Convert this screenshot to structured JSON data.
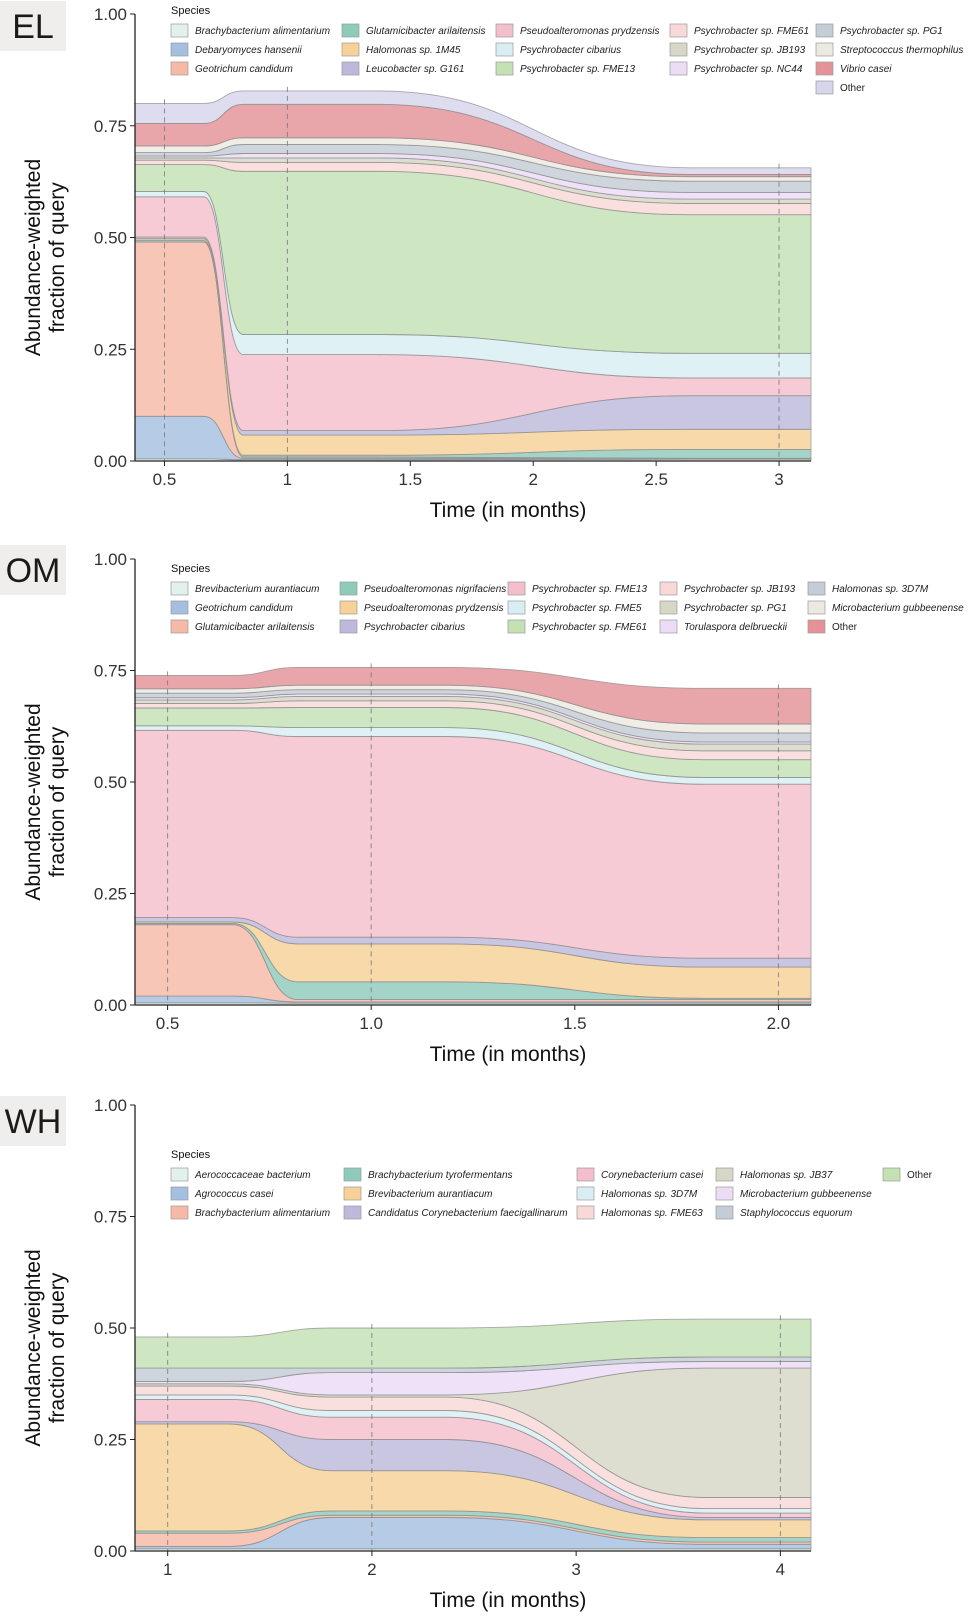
{
  "chart_data": [
    {
      "type": "area",
      "panel_label": "EL",
      "xlabel": "Time (in months)",
      "ylabel": "Abundance-weighted fraction of query",
      "xlim": [
        0.38,
        3.13
      ],
      "ylim": [
        0,
        1
      ],
      "x_ticks": [
        "0.5",
        "1",
        "1.5",
        "2",
        "2.5",
        "3"
      ],
      "x_tick_values": [
        0.5,
        1,
        1.5,
        2,
        2.5,
        3
      ],
      "y_ticks": [
        "0.00",
        "0.25",
        "0.50",
        "0.75",
        "1.00"
      ],
      "y_tick_values": [
        0,
        0.25,
        0.5,
        0.75,
        1
      ],
      "sample_times": [
        0.5,
        1,
        3
      ],
      "legend_title": "Species",
      "legend_columns": 5,
      "series": [
        {
          "name": "Brachybacterium alimentarium",
          "color": "#e3f1ec",
          "values": [
            0.005,
            0.003,
            0.004
          ]
        },
        {
          "name": "Debaryomyces hansenii",
          "color": "#a5bfe1",
          "values": [
            0.095,
            0.003,
            0.001
          ]
        },
        {
          "name": "Geotrichum candidum",
          "color": "#f6b9a6",
          "values": [
            0.39,
            0.003,
            0.001
          ]
        },
        {
          "name": "Glutamicibacter arilaitensis",
          "color": "#8fcbbb",
          "values": [
            0.003,
            0.004,
            0.02
          ]
        },
        {
          "name": "Halomonas sp. 1M45",
          "color": "#f7d197",
          "values": [
            0.004,
            0.045,
            0.045
          ]
        },
        {
          "name": "Leucobacter sp. G161",
          "color": "#bdb9dc",
          "values": [
            0.004,
            0.01,
            0.075
          ]
        },
        {
          "name": "Pseudoalteromonas prydzensis",
          "color": "#f4bfcc",
          "values": [
            0.09,
            0.17,
            0.04
          ]
        },
        {
          "name": "Psychrobacter cibarius",
          "color": "#d9eef3",
          "values": [
            0.012,
            0.045,
            0.055
          ]
        },
        {
          "name": "Psychrobacter sp. FME13",
          "color": "#c3e1b3",
          "values": [
            0.06,
            0.365,
            0.31
          ]
        },
        {
          "name": "Psychrobacter sp. FME61",
          "color": "#f9d8d8",
          "values": [
            0.01,
            0.02,
            0.025
          ]
        },
        {
          "name": "Psychrobacter sp. JB193",
          "color": "#d6d7c6",
          "values": [
            0.005,
            0.01,
            0.01
          ]
        },
        {
          "name": "Psychrobacter sp. NC44",
          "color": "#ecdcf6",
          "values": [
            0.004,
            0.01,
            0.015
          ]
        },
        {
          "name": "Psychrobacter sp. PG1",
          "color": "#c4ccd6",
          "values": [
            0.008,
            0.02,
            0.025
          ]
        },
        {
          "name": "Streptococcus thermophilus",
          "color": "#ebe9e1",
          "values": [
            0.015,
            0.015,
            0.01
          ]
        },
        {
          "name": "Vibrio casei",
          "color": "#e39397",
          "values": [
            0.05,
            0.075,
            0.005
          ]
        },
        {
          "name": "Other",
          "color": "#d5d6ec",
          "values": [
            0.045,
            0.03,
            0.015
          ]
        }
      ]
    },
    {
      "type": "area",
      "panel_label": "OM",
      "xlabel": "Time (in months)",
      "ylabel": "Abundance-weighted fraction of query",
      "xlim": [
        0.42,
        2.08
      ],
      "ylim": [
        0,
        1
      ],
      "x_ticks": [
        "0.5",
        "1.0",
        "1.5",
        "2.0"
      ],
      "x_tick_values": [
        0.5,
        1,
        1.5,
        2
      ],
      "y_ticks": [
        "0.00",
        "0.25",
        "0.50",
        "0.75",
        "1.00"
      ],
      "y_tick_values": [
        0,
        0.25,
        0.5,
        0.75,
        1
      ],
      "sample_times": [
        0.5,
        1,
        2
      ],
      "legend_title": "Species",
      "legend_columns": 5,
      "series": [
        {
          "name": "Brevibacterium aurantiacum",
          "color": "#e3f1ec",
          "values": [
            0.005,
            0.004,
            0.004
          ]
        },
        {
          "name": "Geotrichum candidum",
          "color": "#a5bfe1",
          "values": [
            0.015,
            0.003,
            0.003
          ]
        },
        {
          "name": "Glutamicibacter arilaitensis",
          "color": "#f6b9a6",
          "values": [
            0.16,
            0.005,
            0.005
          ]
        },
        {
          "name": "Pseudoalteromonas nigrifaciens",
          "color": "#8fcbbb",
          "values": [
            0.003,
            0.04,
            0.003
          ]
        },
        {
          "name": "Pseudoalteromonas prydzensis",
          "color": "#f7d197",
          "values": [
            0.003,
            0.085,
            0.07
          ]
        },
        {
          "name": "Psychrobacter cibarius",
          "color": "#bdb9dc",
          "values": [
            0.01,
            0.015,
            0.02
          ]
        },
        {
          "name": "Psychrobacter sp. FME13",
          "color": "#f4bfcc",
          "values": [
            0.42,
            0.45,
            0.39
          ]
        },
        {
          "name": "Psychrobacter sp. FME5",
          "color": "#d9eef3",
          "values": [
            0.01,
            0.02,
            0.015
          ]
        },
        {
          "name": "Psychrobacter sp. FME61",
          "color": "#c3e1b3",
          "values": [
            0.04,
            0.045,
            0.04
          ]
        },
        {
          "name": "Psychrobacter sp. JB193",
          "color": "#f9d8d8",
          "values": [
            0.01,
            0.015,
            0.02
          ]
        },
        {
          "name": "Psychrobacter sp. PG1",
          "color": "#d6d7c6",
          "values": [
            0.008,
            0.01,
            0.015
          ]
        },
        {
          "name": "Torulaspora delbrueckii",
          "color": "#ecdcf6",
          "values": [
            0.005,
            0.005,
            0.005
          ]
        },
        {
          "name": "Halomonas sp. 3D7M",
          "color": "#c4ccd6",
          "values": [
            0.01,
            0.01,
            0.02
          ]
        },
        {
          "name": "Microbacterium gubbeenense",
          "color": "#ebe9e1",
          "values": [
            0.01,
            0.01,
            0.02
          ]
        },
        {
          "name": "Other",
          "color": "#e39397",
          "values": [
            0.03,
            0.04,
            0.08
          ]
        }
      ]
    },
    {
      "type": "area",
      "panel_label": "WH",
      "xlabel": "Time (in months)",
      "ylabel": "Abundance-weighted fraction of query",
      "xlim": [
        0.84,
        4.15
      ],
      "ylim": [
        0,
        1
      ],
      "x_ticks": [
        "1",
        "2",
        "3",
        "4"
      ],
      "x_tick_values": [
        1,
        2,
        3,
        4
      ],
      "y_ticks": [
        "0.00",
        "0.25",
        "0.50",
        "0.75",
        "1.00"
      ],
      "y_tick_values": [
        0,
        0.25,
        0.5,
        0.75,
        1
      ],
      "sample_times": [
        1,
        2,
        4
      ],
      "legend_title": "Species",
      "legend_columns": 5,
      "series": [
        {
          "name": "Aerococcaceae bacterium",
          "color": "#e3f1ec",
          "values": [
            0.005,
            0.005,
            0.005
          ]
        },
        {
          "name": "Agrococcus casei",
          "color": "#a5bfe1",
          "values": [
            0.005,
            0.07,
            0.01
          ]
        },
        {
          "name": "Brachybacterium alimentarium",
          "color": "#f6b9a6",
          "values": [
            0.03,
            0.005,
            0.005
          ]
        },
        {
          "name": "Brachybacterium tyrofermentans",
          "color": "#8fcbbb",
          "values": [
            0.005,
            0.01,
            0.01
          ]
        },
        {
          "name": "Brevibacterium aurantiacum",
          "color": "#f7d197",
          "values": [
            0.24,
            0.09,
            0.04
          ]
        },
        {
          "name": "Candidatus Corynebacterium faecigallinarum",
          "color": "#bdb9dc",
          "values": [
            0.005,
            0.07,
            0.005
          ]
        },
        {
          "name": "Corynebacterium casei",
          "color": "#f4bfcc",
          "values": [
            0.05,
            0.05,
            0.01
          ]
        },
        {
          "name": "Halomonas sp. 3D7M",
          "color": "#d9eef3",
          "values": [
            0.01,
            0.015,
            0.01
          ]
        },
        {
          "name": "Halomonas sp. FME63",
          "color": "#f9d8d8",
          "values": [
            0.02,
            0.03,
            0.025
          ]
        },
        {
          "name": "Halomonas sp. JB37",
          "color": "#d6d7c6",
          "values": [
            0.005,
            0.005,
            0.29
          ]
        },
        {
          "name": "Microbacterium gubbeenense",
          "color": "#ecdcf6",
          "values": [
            0.005,
            0.05,
            0.015
          ]
        },
        {
          "name": "Staphylococcus equorum",
          "color": "#c4ccd6",
          "values": [
            0.03,
            0.01,
            0.01
          ]
        },
        {
          "name": "Other",
          "color": "#c3e1b3",
          "values": [
            0.07,
            0.09,
            0.085
          ]
        }
      ]
    }
  ]
}
